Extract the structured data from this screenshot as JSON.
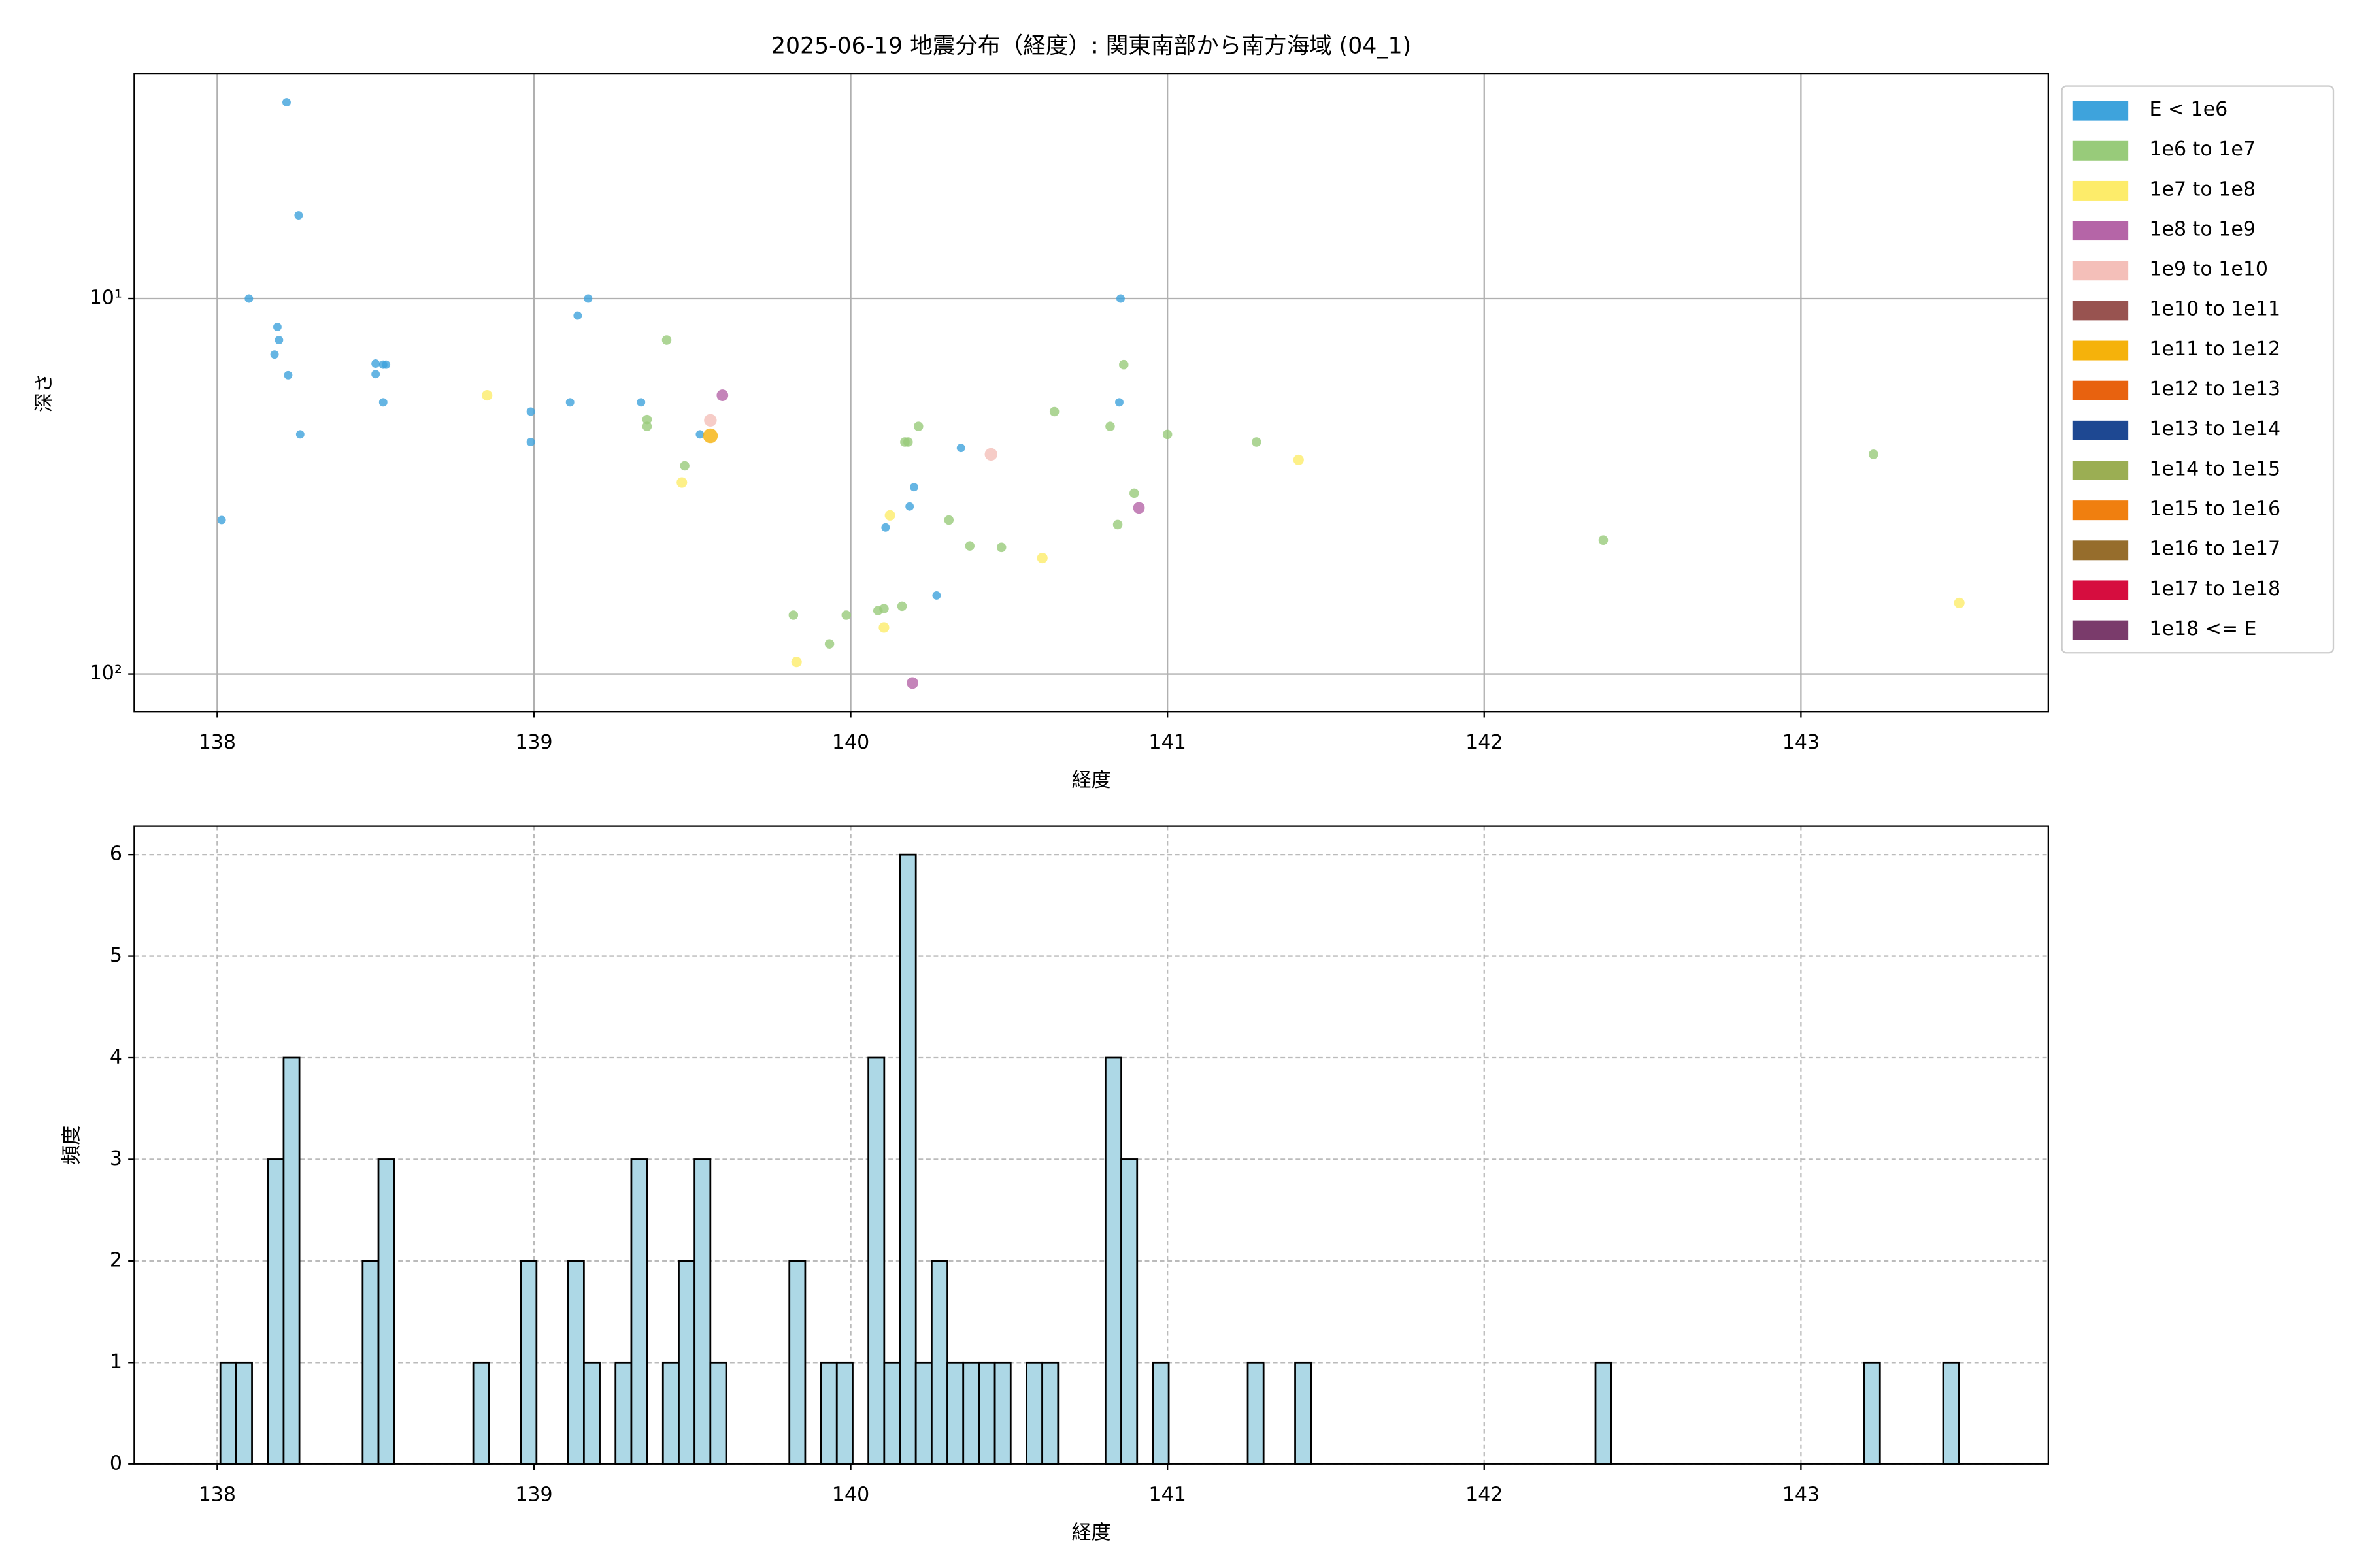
{
  "chart_data": [
    {
      "type": "scatter",
      "title": "2025-06-19 地震分布（経度）: 関東南部から南方海域 (04_1)",
      "xlabel": "経度",
      "ylabel": "深さ",
      "xlim": [
        137.738,
        143.781
      ],
      "xticks": [
        138,
        139,
        140,
        141,
        142,
        143
      ],
      "yscale": "log",
      "ylim": [
        126,
        2.52
      ],
      "yticks": [
        {
          "value": 10,
          "label": "10¹"
        },
        {
          "value": 100,
          "label": "10²"
        }
      ],
      "grid": true,
      "grid_style": "solid",
      "legend_loc": "outside upper right",
      "series": [
        {
          "name": "E < 1e6",
          "color": "#3ea3dc",
          "x": [
            138.219,
            138.257,
            138.1,
            138.19,
            138.195,
            138.181,
            138.224,
            138.5,
            138.5,
            138.524,
            138.533,
            138.524,
            138.262,
            138.014,
            138.99,
            138.99,
            139.114,
            139.138,
            139.171,
            139.338,
            139.524,
            140.348,
            140.2,
            140.186,
            140.11,
            140.271,
            140.852,
            140.848
          ],
          "y": [
            3.0,
            6.0,
            10,
            11.9,
            12.9,
            14.1,
            16.0,
            14.9,
            15.9,
            15,
            15,
            18.9,
            23.0,
            38.9,
            20.0,
            24.1,
            18.9,
            11.1,
            10,
            18.9,
            23,
            25.0,
            31.8,
            35.8,
            40.7,
            61.8,
            10,
            18.9
          ]
        },
        {
          "name": "1e6 to 1e7",
          "color": "#98cb7a",
          "x": [
            139.419,
            139.357,
            139.357,
            139.476,
            139.819,
            139.986,
            139.933,
            140.086,
            140.105,
            140.162,
            140.171,
            140.181,
            140.214,
            140.31,
            140.376,
            140.476,
            140.643,
            140.819,
            140.862,
            140.895,
            140.843,
            141.0,
            141.281,
            142.376,
            143.229
          ],
          "y": [
            12.9,
            21,
            21.9,
            27.9,
            69.7,
            69.7,
            83.2,
            67.8,
            67,
            66,
            24.1,
            24.1,
            21.9,
            38.9,
            45.6,
            46,
            20,
            21.9,
            15,
            33,
            40,
            23,
            24.1,
            44,
            26
          ]
        },
        {
          "name": "1e7 to 1e8",
          "color": "#fdec6a",
          "x": [
            138.852,
            139.467,
            140.124,
            140.105,
            139.829,
            140.605,
            141.414,
            143.5
          ],
          "y": [
            18.1,
            30.9,
            37.8,
            75.2,
            92.9,
            49.1,
            26.9,
            64.7
          ]
        },
        {
          "name": "1e8 to 1e9",
          "color": "#b565a7",
          "x": [
            139.595,
            140.91,
            140.195
          ],
          "y": [
            18.1,
            36.1,
            105.7
          ]
        },
        {
          "name": "1e9 to 1e10",
          "color": "#f4bfb9",
          "x": [
            139.557,
            140.443
          ],
          "y": [
            21.1,
            26
          ]
        },
        {
          "name": "1e10 to 1e11",
          "color": "#985350",
          "x": [],
          "y": []
        },
        {
          "name": "1e11 to 1e12",
          "color": "#f5b20b",
          "x": [
            139.557
          ],
          "y": [
            23.2
          ]
        },
        {
          "name": "1e12 to 1e13",
          "color": "#e8620f",
          "x": [],
          "y": []
        },
        {
          "name": "1e13 to 1e14",
          "color": "#1e4892",
          "x": [],
          "y": []
        },
        {
          "name": "1e14 to 1e15",
          "color": "#9bae53",
          "x": [],
          "y": []
        },
        {
          "name": "1e15 to 1e16",
          "color": "#f07f0f",
          "x": [],
          "y": []
        },
        {
          "name": "1e16 to 1e17",
          "color": "#966d2c",
          "x": [],
          "y": []
        },
        {
          "name": "1e17 to 1e18",
          "color": "#d60d3f",
          "x": [],
          "y": []
        },
        {
          "name": "1e18 <= E",
          "color": "#7a3b6b",
          "x": [],
          "y": []
        }
      ]
    },
    {
      "type": "histogram",
      "xlabel": "経度",
      "ylabel": "頻度",
      "color": "#add8e6",
      "edgecolor": "#000000",
      "xlim": [
        137.738,
        143.781
      ],
      "xticks": [
        138,
        139,
        140,
        141,
        142,
        143
      ],
      "ylim": [
        0,
        6.28
      ],
      "yticks": [
        0,
        1,
        2,
        3,
        4,
        5,
        6
      ],
      "grid": true,
      "grid_style": "dashed",
      "bins": [
        138.01,
        138.0599,
        138.1098,
        138.1597,
        138.2096,
        138.2595,
        138.3094,
        138.3593,
        138.4092,
        138.4591,
        138.509,
        138.5589,
        138.6088,
        138.6587,
        138.7086,
        138.7585,
        138.8084,
        138.8583,
        138.9082,
        138.9581,
        139.008,
        139.0579,
        139.1078,
        139.1577,
        139.2076,
        139.2575,
        139.3074,
        139.3573,
        139.4072,
        139.4571,
        139.507,
        139.5569,
        139.6068,
        139.6567,
        139.7066,
        139.7565,
        139.8064,
        139.8563,
        139.9062,
        139.9561,
        140.006,
        140.0559,
        140.1058,
        140.1557,
        140.2056,
        140.2555,
        140.3054,
        140.3553,
        140.4052,
        140.4551,
        140.505,
        140.5549,
        140.6048,
        140.6547,
        140.7046,
        140.7545,
        140.8044,
        140.8543,
        140.9042,
        140.9541,
        141.004,
        141.0539,
        141.1038,
        141.1537,
        141.2036,
        141.2535,
        141.3034,
        141.3533,
        141.4032,
        141.4531,
        141.503,
        141.5529,
        141.6028,
        141.6527,
        141.7026,
        141.7525,
        141.8024,
        141.8523,
        141.9022,
        141.9521,
        142.002,
        142.0519,
        142.1018,
        142.1517,
        142.2016,
        142.2515,
        142.3014,
        142.3513,
        142.4012,
        142.4511,
        142.501,
        142.5509,
        142.6008,
        142.6507,
        142.7006,
        142.7505,
        142.8004,
        142.8503,
        142.9002,
        142.9501,
        143.0,
        143.0499,
        143.0998,
        143.1497,
        143.1996,
        143.2495,
        143.2994,
        143.3493,
        143.3992,
        143.4491,
        143.499
      ],
      "values": [
        1,
        1,
        0,
        3,
        4,
        0,
        0,
        0,
        0,
        2,
        3,
        0,
        0,
        0,
        0,
        0,
        1,
        0,
        0,
        2,
        0,
        0,
        2,
        1,
        0,
        1,
        3,
        0,
        1,
        2,
        3,
        1,
        0,
        0,
        0,
        0,
        2,
        0,
        1,
        1,
        0,
        4,
        1,
        6,
        1,
        2,
        1,
        1,
        1,
        1,
        0,
        1,
        1,
        0,
        0,
        0,
        4,
        3,
        0,
        1,
        0,
        0,
        0,
        0,
        0,
        1,
        0,
        0,
        1,
        0,
        0,
        0,
        0,
        0,
        0,
        0,
        0,
        0,
        0,
        0,
        0,
        0,
        0,
        0,
        0,
        0,
        0,
        1,
        0,
        0,
        0,
        0,
        0,
        0,
        0,
        0,
        0,
        0,
        0,
        0,
        0,
        0,
        0,
        0,
        1,
        0,
        0,
        0,
        0,
        1
      ]
    }
  ]
}
